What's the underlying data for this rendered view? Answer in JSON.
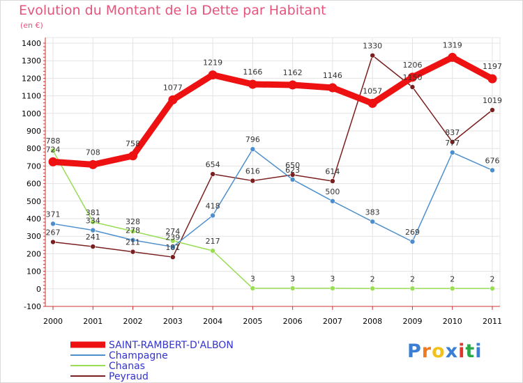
{
  "header": {
    "title": "Evolution du Montant de la Dette par Habitant",
    "subtitle": "(en €)"
  },
  "logo": {
    "letters": [
      "P",
      "r",
      "o",
      "x",
      "i",
      "t",
      "i"
    ],
    "colors": [
      "#3b7fd4",
      "#f07b1f",
      "#f0c21a",
      "#3b7fd4",
      "#e2362d",
      "#2aa84a",
      "#3b7fd4"
    ]
  },
  "chart_data": {
    "type": "line",
    "x": [
      "2000",
      "2001",
      "2002",
      "2003",
      "2004",
      "2005",
      "2006",
      "2007",
      "2008",
      "2009",
      "2010",
      "2011"
    ],
    "ylim": [
      -100,
      1400
    ],
    "yticks": [
      -100,
      0,
      100,
      200,
      300,
      400,
      500,
      600,
      700,
      800,
      900,
      1000,
      1100,
      1200,
      1300,
      1400
    ],
    "grid": true,
    "legend_position": "bottom-left",
    "series": [
      {
        "name": "SAINT-RAMBERT-D'ALBON",
        "color": "#ee1111",
        "legend_text_color": "#3333cc",
        "values": [
          724,
          708,
          758,
          1077,
          1219,
          1166,
          1162,
          1146,
          1057,
          1206,
          1319,
          1197
        ]
      },
      {
        "name": "Champagne",
        "color": "#4d8fcc",
        "legend_text_color": "#3333cc",
        "values": [
          371,
          334,
          278,
          239,
          418,
          796,
          623,
          500,
          383,
          269,
          777,
          676
        ]
      },
      {
        "name": "Chanas",
        "color": "#99dd55",
        "legend_text_color": "#3333cc",
        "values": [
          788,
          381,
          328,
          274,
          217,
          3,
          3,
          3,
          2,
          2,
          2,
          2
        ]
      },
      {
        "name": "Peyraud",
        "color": "#7a1f1f",
        "legend_text_color": "#3333cc",
        "values": [
          267,
          241,
          211,
          181,
          654,
          616,
          650,
          614,
          1330,
          1150,
          837,
          1019
        ]
      }
    ]
  }
}
